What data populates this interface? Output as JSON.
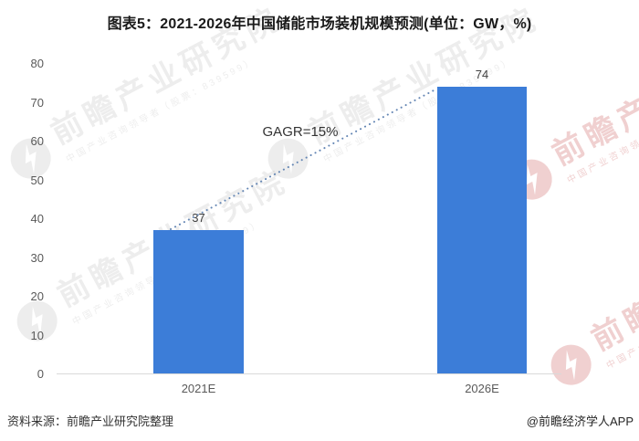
{
  "title": "图表5：2021-2026年中国储能市场装机规模预测(单位：GW，%)",
  "chart_data": {
    "type": "bar",
    "title": "图表5：2021-2026年中国储能市场装机规模预测(单位：GW，%)",
    "categories": [
      "2021E",
      "2026E"
    ],
    "values": [
      37,
      74
    ],
    "xlabel": "",
    "ylabel": "",
    "ylim": [
      0,
      80
    ],
    "yticks": [
      0,
      10,
      20,
      30,
      40,
      50,
      60,
      70,
      80
    ],
    "grid": false,
    "legend": "none",
    "annotation": "GAGR=15%",
    "bar_color": "#3C7DD8",
    "trend_line_color": "#6486B4",
    "axis_line_color": "#d9d9d9"
  },
  "footer": {
    "source": "资料来源：前瞻产业研究院整理",
    "credit": "@前瞻经济学人APP"
  },
  "watermark": {
    "big": "前瞻产业研究院",
    "small": "中国产业咨询领导者（股票：839599）"
  }
}
